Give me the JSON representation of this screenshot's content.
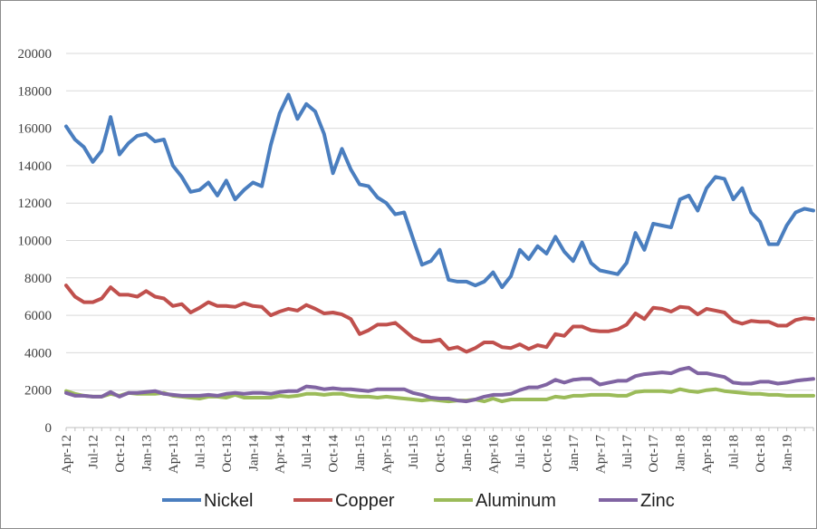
{
  "chart_data": {
    "type": "line",
    "title": "",
    "xlabel": "",
    "ylabel": "",
    "ylim": [
      0,
      20000
    ],
    "ytick_step": 2000,
    "grid": true,
    "legend_position": "bottom",
    "x_tick_labels": [
      "Apr-12",
      "Jul-12",
      "Oct-12",
      "Jan-13",
      "Apr-13",
      "Jul-13",
      "Oct-13",
      "Jan-14",
      "Apr-14",
      "Jul-14",
      "Oct-14",
      "Jan-15",
      "Apr-15",
      "Jul-15",
      "Oct-15",
      "Jan-16",
      "Apr-16",
      "Jul-16",
      "Oct-16",
      "Jan-17",
      "Apr-17",
      "Jul-17",
      "Oct-17",
      "Jan-18",
      "Apr-18",
      "Jul-18",
      "Oct-18",
      "Jan-19"
    ],
    "x_start": "Apr-12",
    "n_points": 85,
    "series": [
      {
        "name": "Nickel",
        "color": "#4a7ebf",
        "values": [
          16100,
          15400,
          15000,
          14200,
          14800,
          16600,
          14600,
          15200,
          15600,
          15700,
          15300,
          15400,
          14000,
          13400,
          12600,
          12700,
          13100,
          12400,
          13200,
          12200,
          12700,
          13100,
          12900,
          15100,
          16800,
          17800,
          16500,
          17300,
          16900,
          15700,
          13600,
          14900,
          13800,
          13000,
          12900,
          12300,
          12000,
          11400,
          11500,
          10100,
          8700,
          8900,
          9500,
          7900,
          7800,
          7800,
          7600,
          7800,
          8300,
          7500,
          8100,
          9500,
          9000,
          9700,
          9300,
          10200,
          9400,
          8900,
          9900,
          8800,
          8400,
          8300,
          8200,
          8800,
          10400,
          9500,
          10900,
          10800,
          10700,
          12200,
          12400,
          11600,
          12800,
          13400,
          13300,
          12200,
          12800,
          11500,
          11000,
          9800,
          9800,
          10800,
          11500,
          11700,
          11600
        ]
      },
      {
        "name": "Copper",
        "color": "#c0504d",
        "values": [
          7600,
          7000,
          6700,
          6700,
          6900,
          7500,
          7100,
          7100,
          7000,
          7300,
          7000,
          6900,
          6500,
          6600,
          6150,
          6400,
          6700,
          6500,
          6500,
          6450,
          6650,
          6500,
          6450,
          6000,
          6200,
          6350,
          6250,
          6550,
          6350,
          6100,
          6150,
          6050,
          5800,
          5000,
          5200,
          5500,
          5500,
          5600,
          5200,
          4800,
          4600,
          4600,
          4700,
          4200,
          4300,
          4050,
          4250,
          4550,
          4550,
          4300,
          4250,
          4450,
          4200,
          4400,
          4300,
          5000,
          4900,
          5400,
          5400,
          5200,
          5150,
          5150,
          5250,
          5500,
          6100,
          5800,
          6400,
          6350,
          6200,
          6450,
          6400,
          6050,
          6350,
          6250,
          6150,
          5700,
          5550,
          5700,
          5650,
          5650,
          5450,
          5450,
          5750,
          5850,
          5800
        ]
      },
      {
        "name": "Aluminum",
        "color": "#9bbb59",
        "values": [
          1950,
          1800,
          1700,
          1650,
          1650,
          1800,
          1700,
          1850,
          1800,
          1800,
          1800,
          1850,
          1700,
          1650,
          1600,
          1550,
          1650,
          1650,
          1600,
          1750,
          1600,
          1600,
          1600,
          1600,
          1700,
          1650,
          1700,
          1800,
          1800,
          1750,
          1800,
          1800,
          1700,
          1650,
          1650,
          1600,
          1650,
          1600,
          1550,
          1500,
          1450,
          1500,
          1450,
          1400,
          1450,
          1450,
          1500,
          1400,
          1550,
          1400,
          1500,
          1500,
          1500,
          1500,
          1500,
          1650,
          1600,
          1700,
          1700,
          1750,
          1750,
          1750,
          1700,
          1700,
          1900,
          1950,
          1950,
          1950,
          1900,
          2050,
          1950,
          1900,
          2000,
          2050,
          1950,
          1900,
          1850,
          1800,
          1800,
          1750,
          1750,
          1700,
          1700,
          1700,
          1700
        ]
      },
      {
        "name": "Zinc",
        "color": "#8064a2",
        "values": [
          1850,
          1700,
          1700,
          1650,
          1650,
          1900,
          1650,
          1850,
          1850,
          1900,
          1950,
          1800,
          1750,
          1700,
          1700,
          1700,
          1750,
          1700,
          1800,
          1850,
          1800,
          1850,
          1850,
          1800,
          1900,
          1950,
          1950,
          2200,
          2150,
          2050,
          2100,
          2050,
          2050,
          2000,
          1950,
          2050,
          2050,
          2050,
          2050,
          1850,
          1750,
          1600,
          1550,
          1550,
          1450,
          1400,
          1500,
          1650,
          1750,
          1750,
          1800,
          2000,
          2150,
          2150,
          2300,
          2550,
          2400,
          2550,
          2600,
          2600,
          2300,
          2400,
          2500,
          2500,
          2750,
          2850,
          2900,
          2950,
          2900,
          3100,
          3200,
          2900,
          2900,
          2800,
          2700,
          2400,
          2350,
          2350,
          2450,
          2450,
          2350,
          2400,
          2500,
          2550,
          2600
        ]
      }
    ]
  }
}
